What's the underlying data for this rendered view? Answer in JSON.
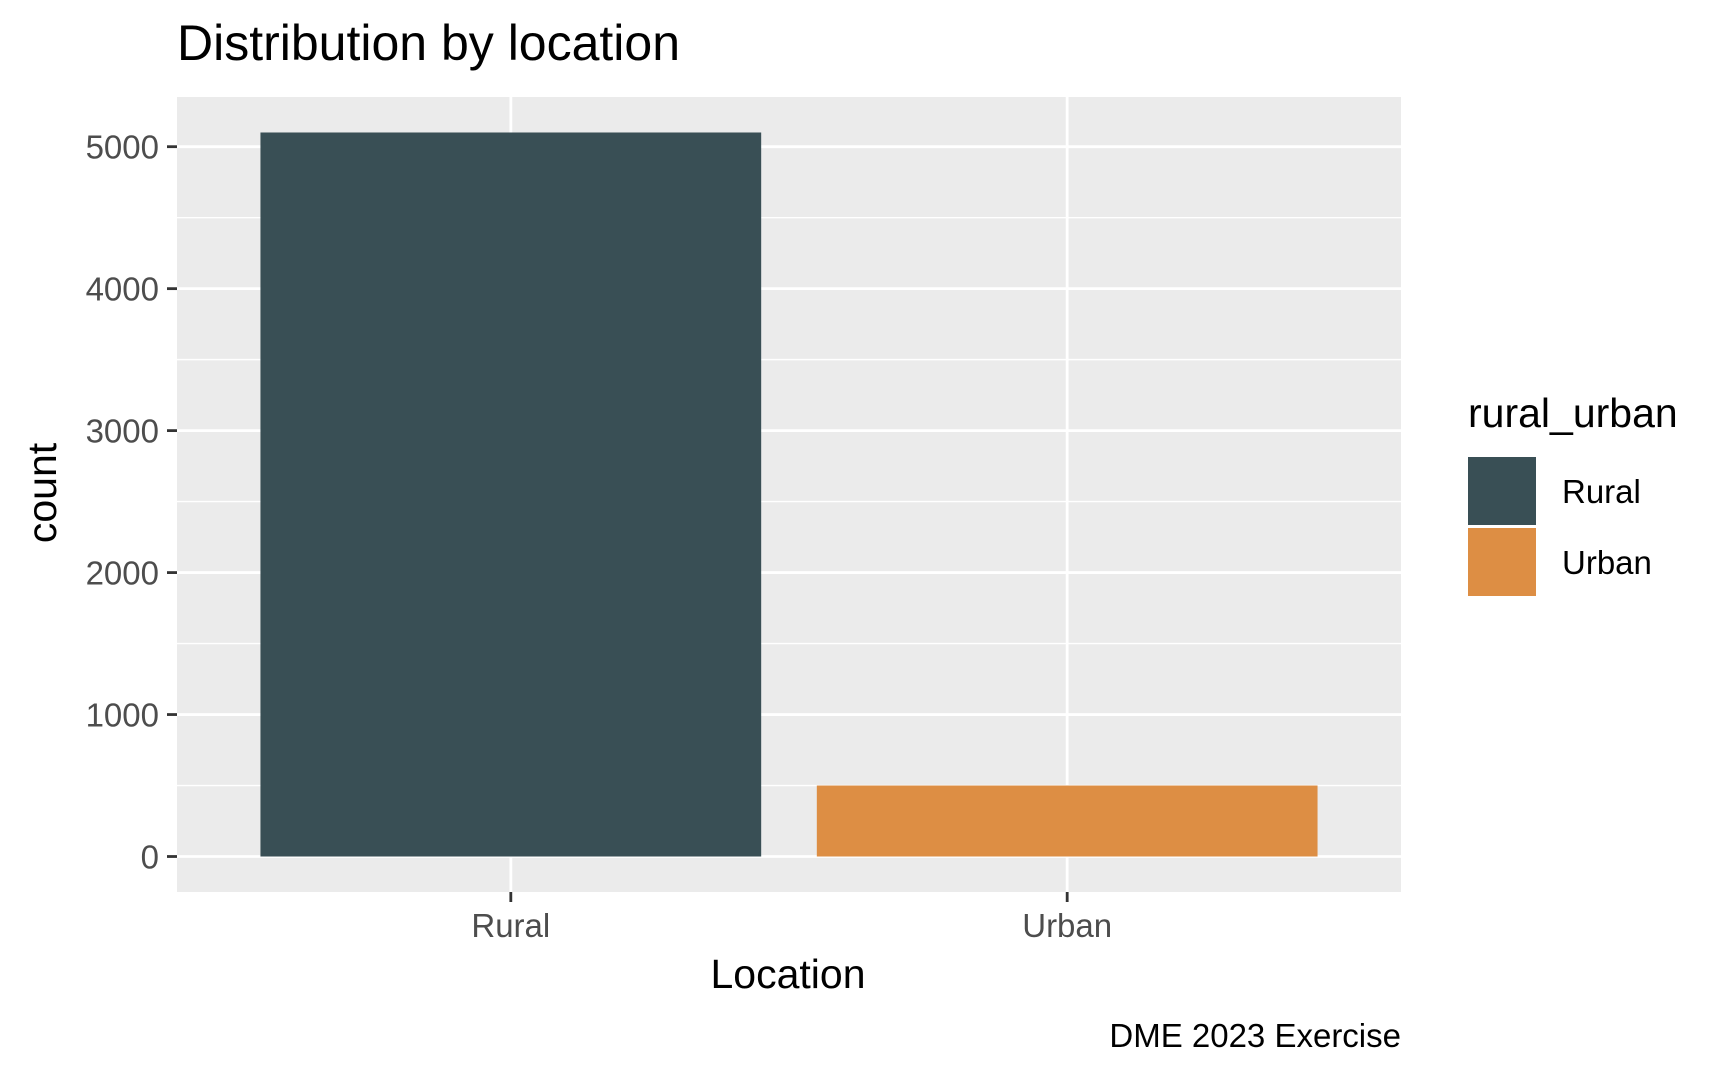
{
  "chart_data": {
    "type": "bar",
    "title": "Distribution by location",
    "xlabel": "Location",
    "ylabel": "count",
    "caption": "DME 2023 Exercise",
    "categories": [
      "Rural",
      "Urban"
    ],
    "values": [
      5100,
      500
    ],
    "ylim": [
      -250,
      5350
    ],
    "y_ticks": [
      0,
      1000,
      2000,
      3000,
      4000,
      5000
    ],
    "y_tick_labels": [
      "0",
      "1000",
      "2000",
      "3000",
      "4000",
      "5000"
    ],
    "grid": true,
    "legend": {
      "title": "rural_urban",
      "position": "right",
      "entries": [
        {
          "label": "Rural",
          "color": "#394f55"
        },
        {
          "label": "Urban",
          "color": "#dd8e44"
        }
      ]
    },
    "colors": {
      "Rural": "#394f55",
      "Urban": "#dd8e44",
      "panel_background": "#ebebeb",
      "grid": "#ffffff"
    }
  }
}
